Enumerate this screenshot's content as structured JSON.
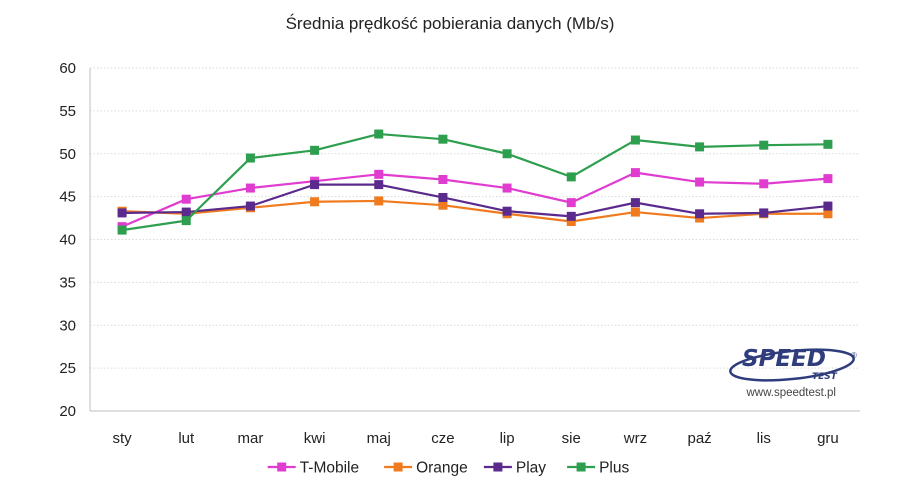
{
  "chart_data": {
    "type": "line",
    "title": "Średnia prędkość pobierania danych (Mb/s)",
    "xlabel": "",
    "ylabel": "",
    "categories": [
      "sty",
      "lut",
      "mar",
      "kwi",
      "maj",
      "cze",
      "lip",
      "sie",
      "wrz",
      "paź",
      "lis",
      "gru"
    ],
    "ylim": [
      20,
      60
    ],
    "yticks": [
      20,
      25,
      30,
      35,
      40,
      45,
      50,
      55,
      60
    ],
    "grid": true,
    "legend_position": "bottom",
    "series": [
      {
        "name": "T-Mobile",
        "color": "#e03cd0",
        "values": [
          41.5,
          44.7,
          46.0,
          46.8,
          47.6,
          47.0,
          46.0,
          44.3,
          47.8,
          46.7,
          46.5,
          47.1
        ]
      },
      {
        "name": "Orange",
        "color": "#f07a1e",
        "values": [
          43.3,
          43.0,
          43.7,
          44.4,
          44.5,
          44.0,
          43.0,
          42.1,
          43.2,
          42.5,
          43.0,
          43.0
        ]
      },
      {
        "name": "Play",
        "color": "#5a2a8c",
        "values": [
          43.1,
          43.2,
          43.9,
          46.4,
          46.4,
          44.9,
          43.3,
          42.7,
          44.3,
          43.0,
          43.1,
          43.9
        ]
      },
      {
        "name": "Plus",
        "color": "#2e9e4f",
        "values": [
          41.1,
          42.2,
          49.5,
          50.4,
          52.3,
          51.7,
          50.0,
          47.3,
          51.6,
          50.8,
          51.0,
          51.1
        ]
      }
    ]
  },
  "watermark": {
    "logo_text": "SPEED",
    "logo_subtext": "TEST",
    "registered": "®",
    "url": "www.speedtest.pl",
    "logo_color": "#2f3d7c"
  }
}
